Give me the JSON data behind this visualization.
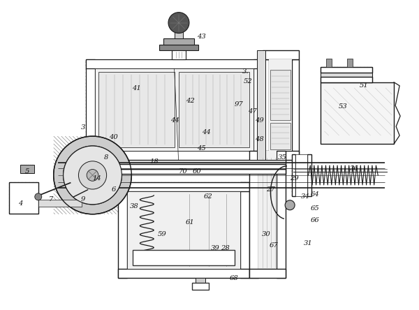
{
  "bg_color": "#ffffff",
  "lc": "#1a1a1a",
  "hc": "#444444",
  "figsize": [
    6.0,
    4.44
  ],
  "dpi": 100,
  "labels": [
    [
      "3",
      1.18,
      2.62
    ],
    [
      "3.",
      3.52,
      3.42
    ],
    [
      "40",
      1.62,
      2.48
    ],
    [
      "41",
      1.95,
      3.18
    ],
    [
      "42",
      2.72,
      3.0
    ],
    [
      "43",
      2.88,
      3.92
    ],
    [
      "44",
      2.5,
      2.72
    ],
    [
      "44",
      2.95,
      2.55
    ],
    [
      "45",
      2.88,
      2.32
    ],
    [
      "8",
      1.52,
      2.18
    ],
    [
      "14",
      1.38,
      1.88
    ],
    [
      "5",
      0.38,
      1.98
    ],
    [
      "4",
      0.28,
      1.52
    ],
    [
      "6",
      1.62,
      1.72
    ],
    [
      "7",
      0.72,
      1.58
    ],
    [
      "9",
      1.18,
      1.58
    ],
    [
      "18",
      2.2,
      2.12
    ],
    [
      "27",
      3.88,
      1.72
    ],
    [
      "28",
      3.22,
      0.88
    ],
    [
      "29",
      4.22,
      1.88
    ],
    [
      "30",
      3.82,
      1.08
    ],
    [
      "31",
      4.42,
      0.95
    ],
    [
      "34",
      4.38,
      1.62
    ],
    [
      "35",
      4.05,
      2.18
    ],
    [
      "36",
      5.08,
      2.02
    ],
    [
      "38",
      1.92,
      1.48
    ],
    [
      "39",
      3.08,
      0.88
    ],
    [
      "47",
      3.62,
      2.85
    ],
    [
      "48",
      3.72,
      2.45
    ],
    [
      "49",
      3.72,
      2.72
    ],
    [
      "51",
      5.22,
      3.22
    ],
    [
      "52",
      3.55,
      3.28
    ],
    [
      "53",
      4.92,
      2.92
    ],
    [
      "59",
      2.32,
      1.08
    ],
    [
      "60",
      2.82,
      1.98
    ],
    [
      "61",
      2.72,
      1.25
    ],
    [
      "62",
      2.98,
      1.62
    ],
    [
      "64",
      4.52,
      1.65
    ],
    [
      "65",
      4.52,
      1.45
    ],
    [
      "66",
      4.52,
      1.28
    ],
    [
      "67",
      3.92,
      0.92
    ],
    [
      "68",
      3.35,
      0.45
    ],
    [
      "70",
      2.62,
      1.98
    ],
    [
      "97",
      3.42,
      2.95
    ]
  ]
}
